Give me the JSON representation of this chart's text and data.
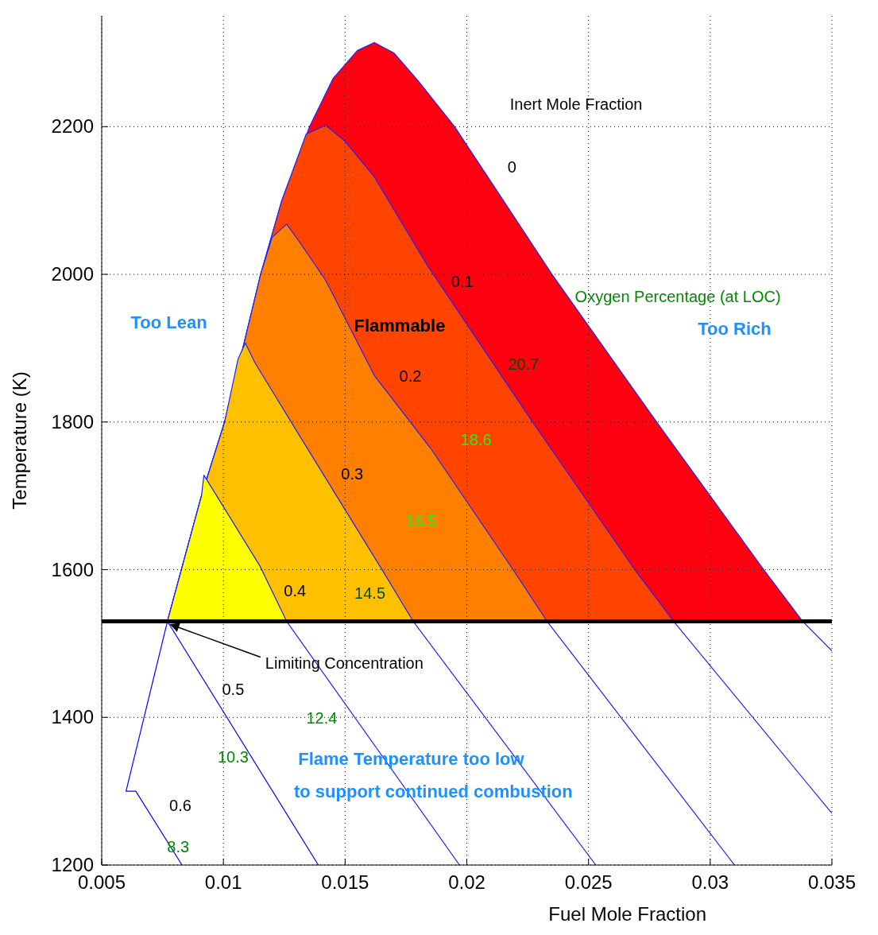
{
  "chart_data": {
    "type": "line",
    "xlabel": "Fuel Mole Fraction",
    "ylabel": "Temperature (K)",
    "xlim": [
      0.005,
      0.035
    ],
    "ylim": [
      1200,
      2350
    ],
    "xticks": [
      0.005,
      0.01,
      0.015,
      0.02,
      0.025,
      0.03,
      0.035
    ],
    "yticks": [
      1200,
      1400,
      1600,
      1800,
      2000,
      2200
    ],
    "grid": true,
    "line_style": "solid",
    "ref_lines": [
      {
        "axis": "y",
        "value": 1530,
        "color": "#000000"
      }
    ],
    "series": [
      {
        "type": "area",
        "color": "#ff0010",
        "x": [
          0.0077,
          0.0091,
          0.01005,
          0.0108,
          0.01153,
          0.0124,
          0.01354,
          0.0145,
          0.0155,
          0.0162,
          0.017,
          0.018,
          0.0195,
          0.0215,
          0.0235,
          0.0278,
          0.0322,
          0.0338,
          0.035
        ],
        "values": [
          1530,
          1700,
          1800,
          1900,
          2000,
          2100,
          2200,
          2265,
          2303,
          2314,
          2300,
          2262,
          2200,
          2100,
          2000,
          1800,
          1600,
          1530,
          1490
        ]
      },
      {
        "type": "area",
        "color": "#ff4400",
        "x": [
          0.0077,
          0.0091,
          0.01005,
          0.0108,
          0.01153,
          0.0124,
          0.0134,
          0.0142,
          0.015,
          0.0162,
          0.0184,
          0.0227,
          0.0269,
          0.0285,
          0.035
        ],
        "values": [
          1530,
          1700,
          1800,
          1900,
          2000,
          2100,
          2190,
          2202,
          2180,
          2132,
          2011,
          1800,
          1600,
          1530,
          1270
        ]
      },
      {
        "type": "area",
        "color": "#ff8000",
        "x": [
          0.0077,
          0.0091,
          0.01005,
          0.0108,
          0.01153,
          0.012,
          0.0126,
          0.0131,
          0.0142,
          0.0162,
          0.0185,
          0.0219,
          0.0233,
          0.031
        ],
        "values": [
          1530,
          1700,
          1800,
          1900,
          2000,
          2050,
          2068,
          2045,
          1992,
          1863,
          1765,
          1600,
          1530,
          1200
        ]
      },
      {
        "type": "area",
        "color": "#ffc000",
        "x": [
          0.0077,
          0.0091,
          0.01005,
          0.0106,
          0.0109,
          0.0113,
          0.0131,
          0.0165,
          0.0178,
          0.0253
        ],
        "values": [
          1530,
          1700,
          1800,
          1885,
          1907,
          1880,
          1783,
          1601,
          1530,
          1200
        ]
      },
      {
        "type": "area",
        "color": "#ffff00",
        "x": [
          0.0077,
          0.0091,
          0.0092,
          0.0115,
          0.0126,
          0.0197
        ],
        "values": [
          1530,
          1700,
          1728,
          1605,
          1530,
          1200
        ]
      },
      {
        "color": "#0000ff",
        "x": [
          0.0077,
          0.0139
        ],
        "values": [
          1530,
          1200
        ]
      },
      {
        "color": "#0000ff",
        "x": [
          0.0077,
          0.006,
          0.0064,
          0.0083
        ],
        "values": [
          1530,
          1300,
          1300,
          1200
        ]
      }
    ],
    "annotations": [
      "Inert Mole Fraction",
      "0",
      "0.1",
      "0.2",
      "0.3",
      "0.4",
      "0.5",
      "0.6",
      "Oxygen Percentage (at LOC)",
      "20.7",
      "18.6",
      "16.5",
      "14.5",
      "12.4",
      "10.3",
      "8.3",
      "Too Lean",
      "Too Rich",
      "Flammable",
      "Flame Temperature too low",
      "to support continued combustion",
      {
        "text": "Limiting Concentration",
        "x": 0.0077,
        "y": 1530
      }
    ]
  }
}
